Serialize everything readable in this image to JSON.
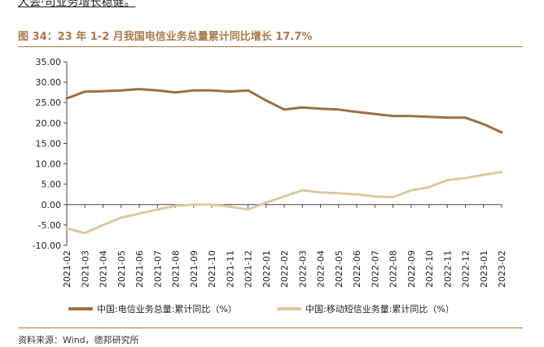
{
  "header": {
    "top_text": "大会·司业务增长稳健。",
    "figure_title": "图 34：23 年 1-2 月我国电信业务总量累计同比增长 17.7%",
    "source": "资料来源：Wind，德邦研究所"
  },
  "colors": {
    "accent": "#a97a4c",
    "series_1": "#9b6f46",
    "series_2": "#dac9a4"
  },
  "chart_data": {
    "type": "line",
    "categories": [
      "2021-02",
      "2021-03",
      "2021-04",
      "2021-05",
      "2021-06",
      "2021-07",
      "2021-08",
      "2021-09",
      "2021-10",
      "2021-11",
      "2021-12",
      "2022-01",
      "2022-02",
      "2022-03",
      "2022-04",
      "2022-05",
      "2022-06",
      "2022-07",
      "2022-08",
      "2022-09",
      "2022-10",
      "2022-11",
      "2022-12",
      "2023-01",
      "2023-02"
    ],
    "series": [
      {
        "name": "中国:电信业务总量:累计同比（%）",
        "values": [
          26.0,
          27.7,
          27.8,
          28.0,
          28.3,
          28.0,
          27.5,
          28.0,
          28.0,
          27.7,
          28.0,
          25.5,
          23.3,
          23.8,
          23.5,
          23.3,
          22.7,
          22.2,
          21.7,
          21.7,
          21.5,
          21.3,
          21.3,
          19.7,
          17.7
        ]
      },
      {
        "name": "中国:移动短信业务量:累计同比（%）",
        "values": [
          -5.8,
          -7.0,
          -5.0,
          -3.2,
          -2.2,
          -1.2,
          -0.3,
          0.0,
          0.0,
          -0.5,
          -1.2,
          0.5,
          2.0,
          3.5,
          3.0,
          2.8,
          2.5,
          2.0,
          1.8,
          3.5,
          4.3,
          6.0,
          6.5,
          7.3,
          8.0
        ]
      }
    ],
    "y_ticks": [
      "35.00",
      "30.00",
      "25.00",
      "20.00",
      "15.00",
      "10.00",
      "5.00",
      "0.00",
      "-5.00",
      "-10.00"
    ],
    "ylim": [
      -10,
      35
    ],
    "legend_position": "bottom",
    "grid": false
  }
}
